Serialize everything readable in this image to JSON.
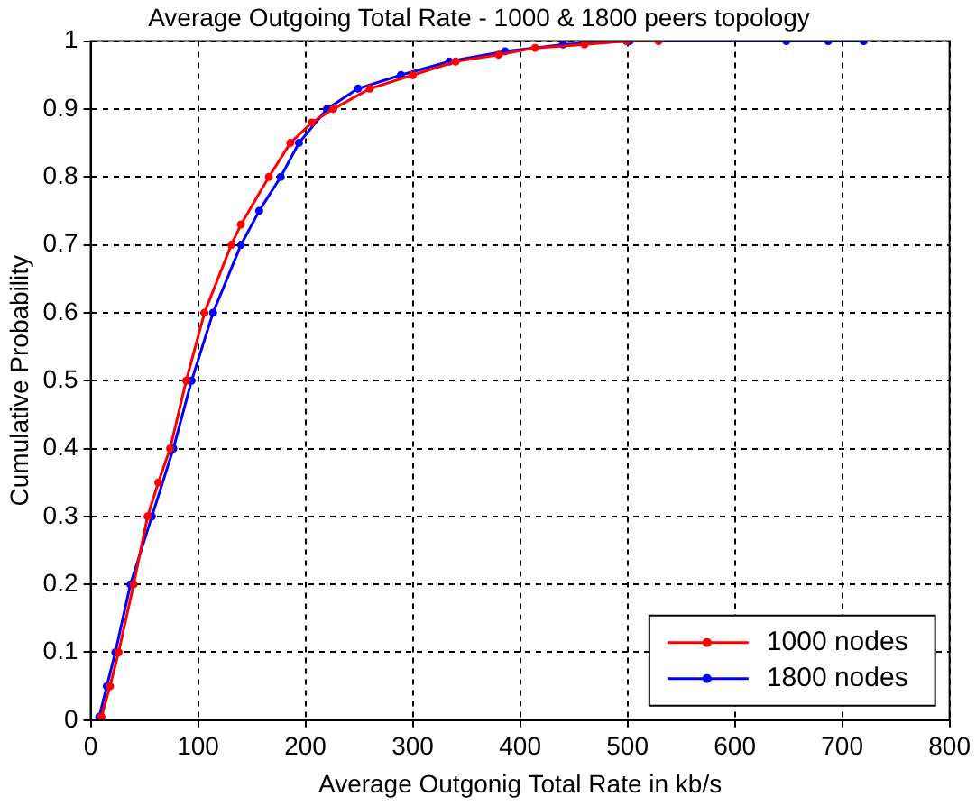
{
  "chart_data": {
    "type": "line",
    "title": "Average Outgoing Total Rate - 1000 & 1800 peers topology",
    "xlabel": "Average Outgonig Total Rate in kb/s",
    "ylabel": "Cumulative Probability",
    "xlim": [
      0,
      800
    ],
    "xticks": [
      0,
      100,
      200,
      300,
      400,
      500,
      600,
      700,
      800
    ],
    "ylim": [
      0,
      1
    ],
    "yticks": [
      0,
      0.1,
      0.2,
      0.3,
      0.4,
      0.5,
      0.6,
      0.7,
      0.8,
      0.9,
      1
    ],
    "grid": true,
    "legend": "bottom right",
    "marker": "circle",
    "series": [
      {
        "name": "1000 nodes",
        "color": "#ff0000",
        "x": [
          10,
          18,
          26,
          40,
          53,
          63,
          74,
          89,
          106,
          131,
          140,
          166,
          186,
          206,
          226,
          260,
          300,
          340,
          380,
          414,
          460,
          499,
          529
        ],
        "values": [
          0.005,
          0.05,
          0.1,
          0.2,
          0.3,
          0.35,
          0.4,
          0.5,
          0.6,
          0.7,
          0.73,
          0.8,
          0.85,
          0.88,
          0.9,
          0.93,
          0.95,
          0.97,
          0.98,
          0.99,
          0.995,
          1,
          1
        ]
      },
      {
        "name": "1800 nodes",
        "color": "#0000ff",
        "x": [
          8,
          15,
          23,
          37,
          57,
          77,
          94,
          114,
          140,
          157,
          177,
          194,
          220,
          249,
          289,
          334,
          386,
          440,
          502,
          648,
          687,
          720
        ],
        "values": [
          0.005,
          0.05,
          0.1,
          0.2,
          0.3,
          0.4,
          0.5,
          0.6,
          0.7,
          0.75,
          0.8,
          0.85,
          0.9,
          0.93,
          0.95,
          0.97,
          0.985,
          0.995,
          1,
          1,
          1,
          1
        ]
      }
    ]
  }
}
